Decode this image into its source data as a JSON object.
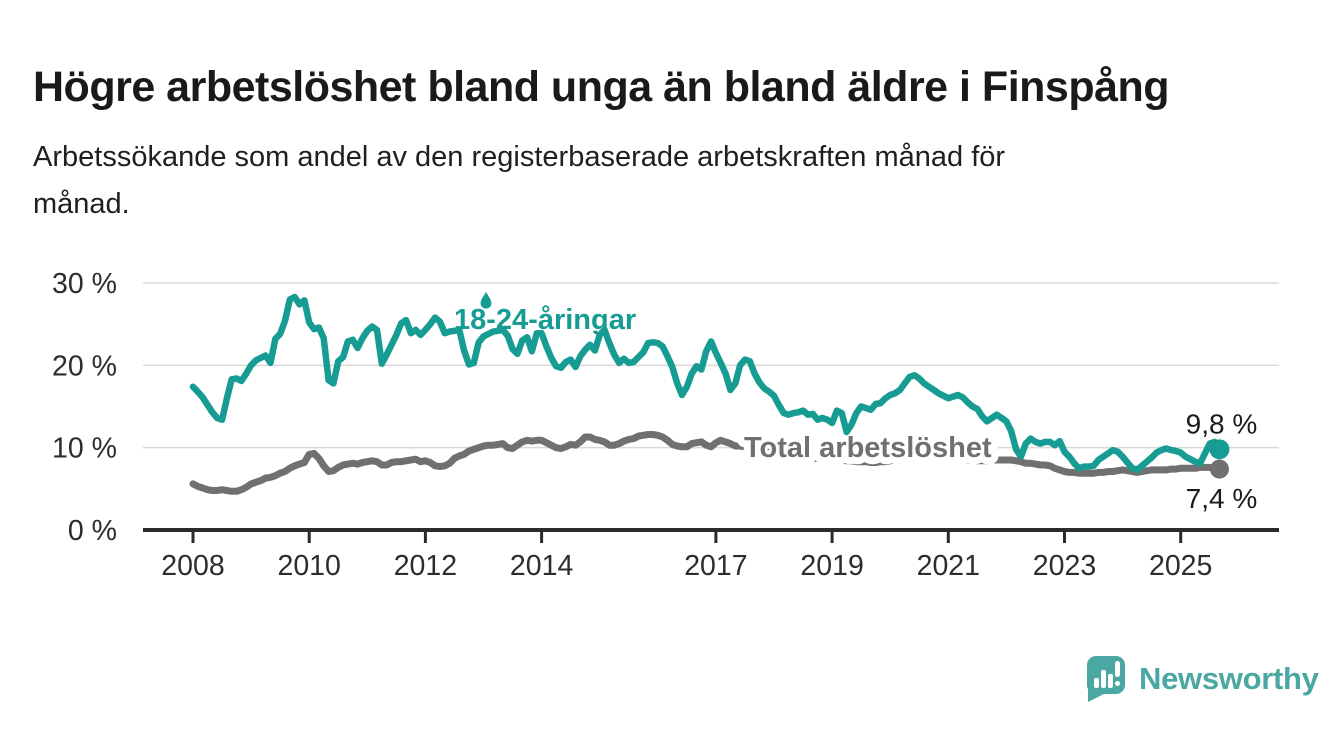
{
  "title": "Högre arbetslöshet bland unga än bland äldre i Finspång",
  "subtitle": "Arbetssökande som andel av den registerbaserade arbetskraften månad för månad.",
  "subtitle_lines": [
    "Arbetssökande som andel av den registerbaserade arbetskraften månad för",
    "månad."
  ],
  "branding": {
    "logo_text": "Newsworthy",
    "logo_color": "#4BA7A1"
  },
  "icons": {
    "logo_icon": "speech-bubble-with-bar-chart-and-exclamation",
    "droplet_marker": "teardrop-pointer-above-series-label"
  },
  "colors": {
    "young_series": "#169C92",
    "total_series": "#707070",
    "gridline": "#d9d9d9",
    "axis": "#2b2b2b",
    "text": "#1a1a1a"
  },
  "chart_data": {
    "type": "line",
    "unit": "%",
    "frequency": "monthly",
    "start": "2008-01",
    "end": "2025-09",
    "ylim": [
      0,
      30
    ],
    "grid": "horizontal",
    "legend_position": "inline-labels",
    "x_ticks": {
      "years": [
        2008,
        2010,
        2012,
        2014,
        2017,
        2019,
        2021,
        2023,
        2025
      ],
      "labels": [
        "2008",
        "2010",
        "2012",
        "2014",
        "2017",
        "2019",
        "2021",
        "2023",
        "2025"
      ]
    },
    "y_ticks": {
      "values": [
        0,
        10,
        20,
        30
      ],
      "labels": [
        "0 %",
        "10 %",
        "20 %",
        "30 %"
      ]
    },
    "series": [
      {
        "name": "18-24-åringar",
        "color": "#169C92",
        "end_value": 9.8,
        "end_label": "9,8 %",
        "values": [
          17.4,
          16.8,
          16.1,
          15.2,
          14.3,
          13.6,
          13.4,
          16.0,
          18.3,
          18.4,
          18.1,
          19.0,
          20.0,
          20.6,
          20.9,
          21.2,
          20.3,
          23.2,
          23.8,
          25.4,
          28.0,
          28.3,
          27.4,
          27.9,
          25.2,
          24.4,
          24.6,
          23.3,
          18.2,
          17.8,
          20.5,
          21.0,
          22.9,
          23.1,
          22.1,
          23.3,
          24.2,
          24.7,
          24.3,
          20.2,
          21.3,
          22.5,
          23.7,
          25.1,
          25.5,
          23.9,
          24.3,
          23.7,
          24.3,
          25.0,
          25.8,
          25.3,
          23.9,
          24.1,
          24.2,
          24.3,
          21.8,
          20.1,
          20.3,
          22.8,
          23.5,
          23.8,
          24.1,
          24.2,
          24.3,
          23.6,
          22.0,
          21.4,
          23.0,
          23.4,
          21.7,
          23.9,
          23.9,
          22.3,
          20.9,
          19.9,
          19.7,
          20.4,
          20.7,
          19.8,
          21.1,
          21.9,
          22.5,
          21.8,
          23.7,
          24.3,
          22.7,
          21.3,
          20.3,
          20.8,
          20.3,
          20.4,
          21.0,
          21.6,
          22.7,
          22.8,
          22.7,
          22.3,
          21.1,
          19.8,
          17.8,
          16.4,
          17.4,
          19.0,
          19.9,
          19.5,
          21.7,
          22.9,
          21.5,
          20.3,
          19.0,
          17.0,
          17.8,
          20.0,
          20.7,
          20.5,
          19.0,
          17.9,
          17.2,
          16.8,
          16.3,
          15.2,
          14.2,
          14.0,
          14.2,
          14.3,
          14.5,
          14.0,
          14.1,
          13.4,
          13.6,
          13.4,
          13.0,
          14.5,
          14.2,
          11.9,
          12.8,
          14.2,
          15.0,
          14.8,
          14.6,
          15.3,
          15.4,
          16.0,
          16.4,
          16.6,
          17.0,
          17.8,
          18.6,
          18.8,
          18.4,
          17.8,
          17.4,
          17.0,
          16.6,
          16.3,
          16.0,
          16.2,
          16.4,
          16.1,
          15.5,
          15.0,
          14.7,
          13.8,
          13.2,
          13.6,
          14.0,
          13.6,
          13.2,
          12.0,
          9.8,
          8.9,
          10.5,
          11.1,
          10.7,
          10.5,
          10.7,
          10.7,
          10.3,
          10.8,
          9.5,
          8.9,
          8.1,
          7.5,
          7.7,
          7.7,
          7.8,
          8.5,
          8.9,
          9.3,
          9.7,
          9.5,
          8.9,
          8.2,
          7.5,
          7.3,
          7.8,
          8.3,
          8.8,
          9.4,
          9.7,
          9.9,
          9.7,
          9.6,
          9.4,
          8.9,
          8.6,
          8.3,
          8.1,
          9.3,
          10.5,
          10.7,
          9.8
        ]
      },
      {
        "name": "Total arbetslöshet",
        "color": "#707070",
        "end_value": 7.4,
        "end_label": "7,4 %",
        "values": [
          5.6,
          5.3,
          5.1,
          4.9,
          4.8,
          4.8,
          4.9,
          4.8,
          4.7,
          4.7,
          4.9,
          5.2,
          5.6,
          5.8,
          6.0,
          6.3,
          6.4,
          6.6,
          6.9,
          7.1,
          7.5,
          7.8,
          8.0,
          8.2,
          9.2,
          9.3,
          8.7,
          7.8,
          7.1,
          7.2,
          7.6,
          7.9,
          8.0,
          8.1,
          8.0,
          8.2,
          8.3,
          8.4,
          8.3,
          7.9,
          7.9,
          8.2,
          8.3,
          8.3,
          8.4,
          8.5,
          8.6,
          8.3,
          8.4,
          8.2,
          7.8,
          7.7,
          7.8,
          8.1,
          8.7,
          9.0,
          9.2,
          9.6,
          9.8,
          10.0,
          10.2,
          10.3,
          10.3,
          10.4,
          10.5,
          10.0,
          9.9,
          10.3,
          10.7,
          10.9,
          10.8,
          10.9,
          10.9,
          10.6,
          10.3,
          10.0,
          9.9,
          10.1,
          10.4,
          10.3,
          10.7,
          11.3,
          11.3,
          11.0,
          10.9,
          10.7,
          10.3,
          10.3,
          10.5,
          10.8,
          11.0,
          11.1,
          11.4,
          11.5,
          11.6,
          11.6,
          11.5,
          11.3,
          10.9,
          10.4,
          10.2,
          10.1,
          10.1,
          10.5,
          10.6,
          10.7,
          10.3,
          10.1,
          10.6,
          10.9,
          10.7,
          10.5,
          10.2,
          10.2,
          10.1,
          10.0,
          9.9,
          9.8,
          9.7,
          9.6,
          9.5,
          9.4,
          9.2,
          9.1,
          9.0,
          8.9,
          8.9,
          8.8,
          8.7,
          8.7,
          8.6,
          8.6,
          8.6,
          8.5,
          8.5,
          8.4,
          8.4,
          8.3,
          8.3,
          8.3,
          8.2,
          8.2,
          8.3,
          8.3,
          8.4,
          8.5,
          8.7,
          9.0,
          9.2,
          9.2,
          9.2,
          9.1,
          9.0,
          8.9,
          8.8,
          8.7,
          8.7,
          8.7,
          8.6,
          8.6,
          8.5,
          8.5,
          8.4,
          8.4,
          8.4,
          8.5,
          8.5,
          8.5,
          8.5,
          8.5,
          8.4,
          8.3,
          8.1,
          8.1,
          8.0,
          7.9,
          7.9,
          7.8,
          7.5,
          7.3,
          7.1,
          7.0,
          7.0,
          6.9,
          6.9,
          6.9,
          6.9,
          7.0,
          7.0,
          7.1,
          7.1,
          7.2,
          7.3,
          7.2,
          7.1,
          7.0,
          7.1,
          7.2,
          7.3,
          7.3,
          7.3,
          7.3,
          7.4,
          7.4,
          7.5,
          7.5,
          7.5,
          7.5,
          7.6,
          7.6,
          7.6,
          7.5,
          7.4
        ]
      }
    ]
  }
}
